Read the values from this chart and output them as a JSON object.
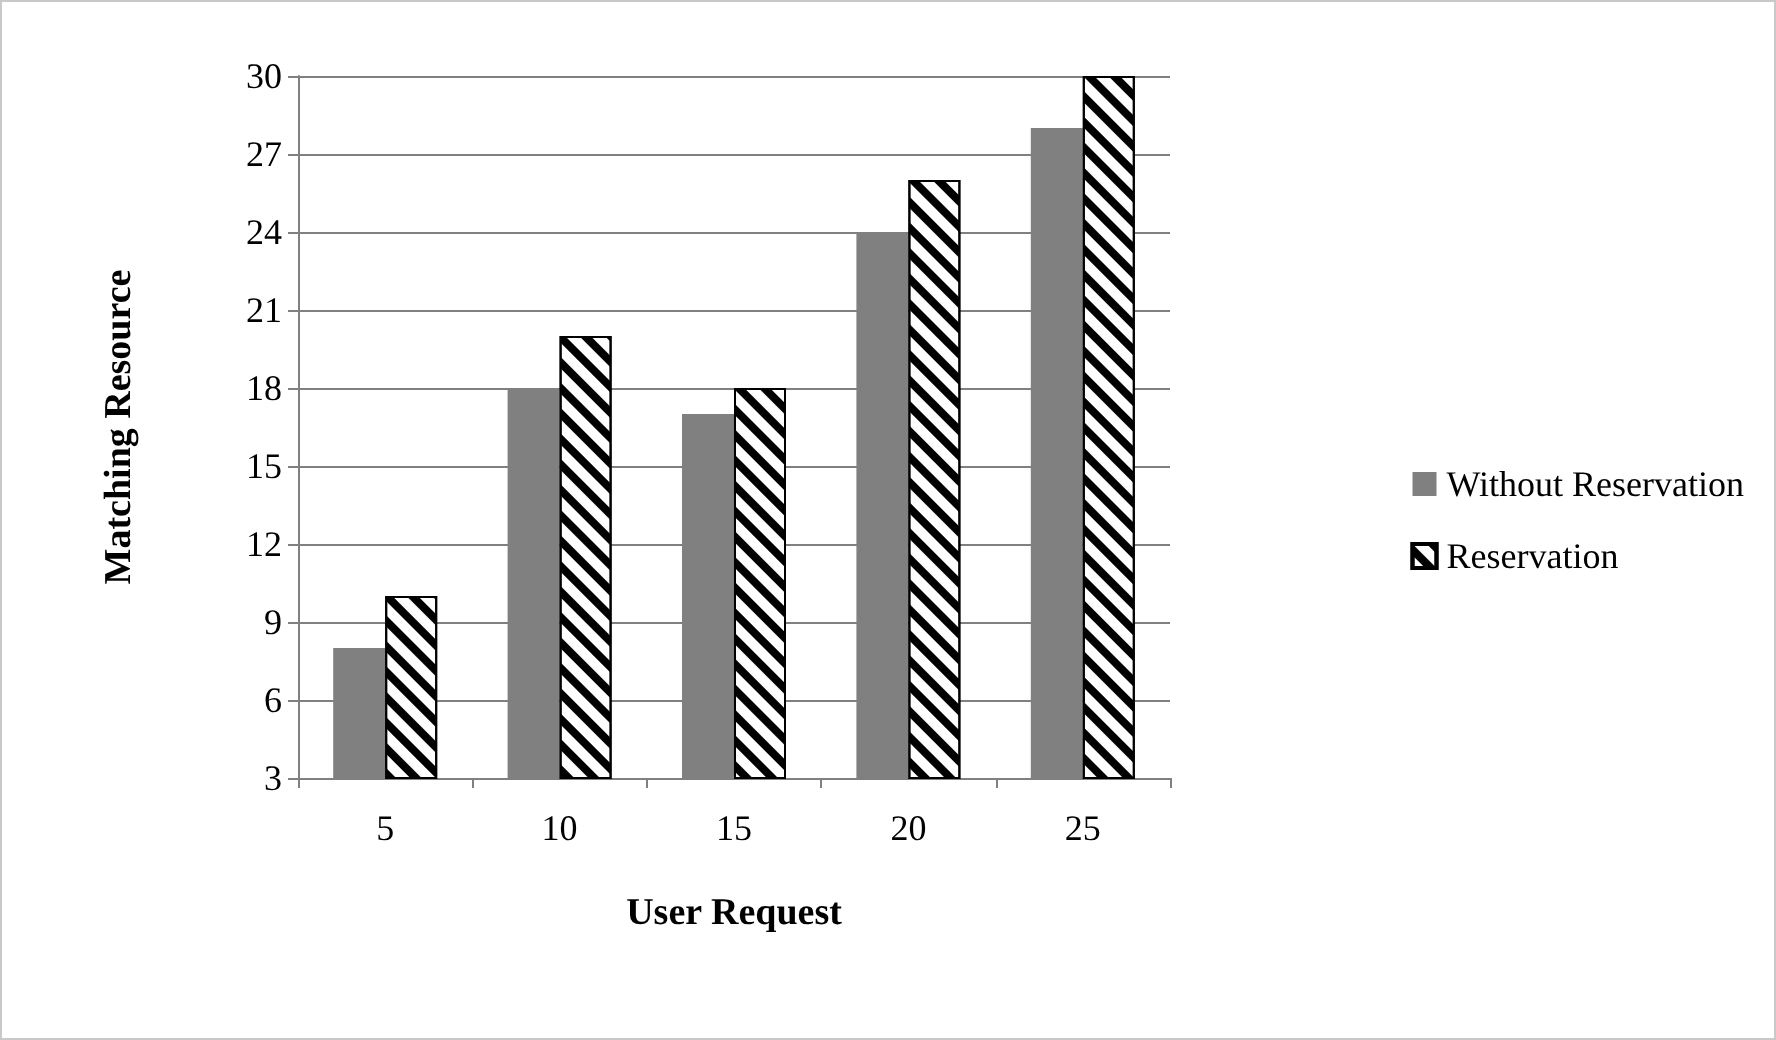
{
  "chart_data": {
    "type": "bar",
    "xlabel": "User Request",
    "ylabel": "Matching Resource",
    "categories": [
      "5",
      "10",
      "15",
      "20",
      "25"
    ],
    "series": [
      {
        "name": "Without Reservation",
        "color": "#808080",
        "values": [
          8,
          18,
          17,
          24,
          28
        ]
      },
      {
        "name": "Reservation",
        "color": "#000000",
        "values": [
          10,
          20,
          18,
          26,
          30
        ]
      }
    ],
    "ylim": [
      3,
      30
    ],
    "yticks": [
      3,
      6,
      9,
      12,
      15,
      18,
      21,
      24,
      27,
      30
    ],
    "grid": "y",
    "legend": "right"
  }
}
